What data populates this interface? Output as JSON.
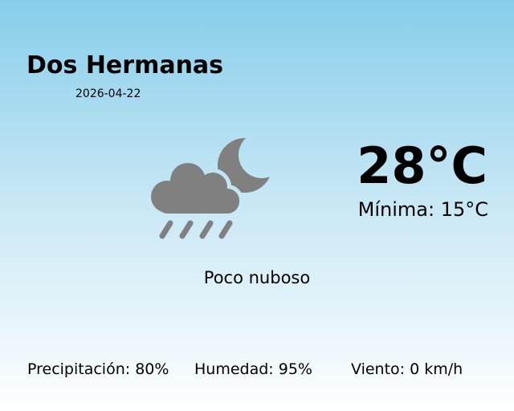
{
  "city": "Dos Hermanas",
  "date": "2026-04-22",
  "temperature": "28°C",
  "minimum": "Mínima: 15°C",
  "condition": {
    "label": "Poco nuboso",
    "icon": "cloud-rain-moon-icon",
    "icon_color": "#808080"
  },
  "stats": {
    "precipitation": "Precipitación: 80%",
    "humidity": "Humedad: 95%",
    "wind": "Viento: 0 km/h"
  },
  "colors": {
    "sky_top": "#87ceeb",
    "sky_bottom": "#ffffff"
  }
}
